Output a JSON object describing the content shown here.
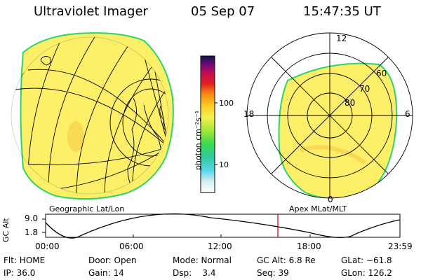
{
  "header": {
    "instrument": "Ultraviolet Imager",
    "date": "05 Sep 07",
    "time": "15:47:35 UT"
  },
  "colorbar": {
    "unit_label": "photon cm⁻²s⁻¹",
    "ticks": [
      "100",
      "10"
    ]
  },
  "polar_plot": {
    "mlt_labels": [
      "12",
      "18",
      "6",
      "0"
    ],
    "lat_labels": [
      "60",
      "70",
      "80"
    ],
    "caption": "Apex MLat/MLT"
  },
  "geo_plot": {
    "caption": "Geographic Lat/Lon"
  },
  "altitude_chart": {
    "ylabel": "GC Alt",
    "yticks": [
      "9.0",
      "1.8"
    ],
    "xticks": [
      "00:00",
      "06:00",
      "12:00",
      "18:00",
      "23:59"
    ]
  },
  "status": {
    "flt": "Flt: HOME",
    "door": "Door: Open",
    "mode": "Mode: Normal",
    "gc_alt": "GC Alt: 6.8 Re",
    "glat": "GLat: −61.8",
    "ip": "IP: 36.0",
    "gain": "Gain: 14",
    "dsp": "Dsp:    3.4",
    "seq": "Seq: 39",
    "glon": "GLon: 126.2"
  },
  "colors": {
    "aurora_fill": "#fdf068",
    "aurora_edge": "#2fd36a",
    "marker_line": "#cc0000"
  }
}
